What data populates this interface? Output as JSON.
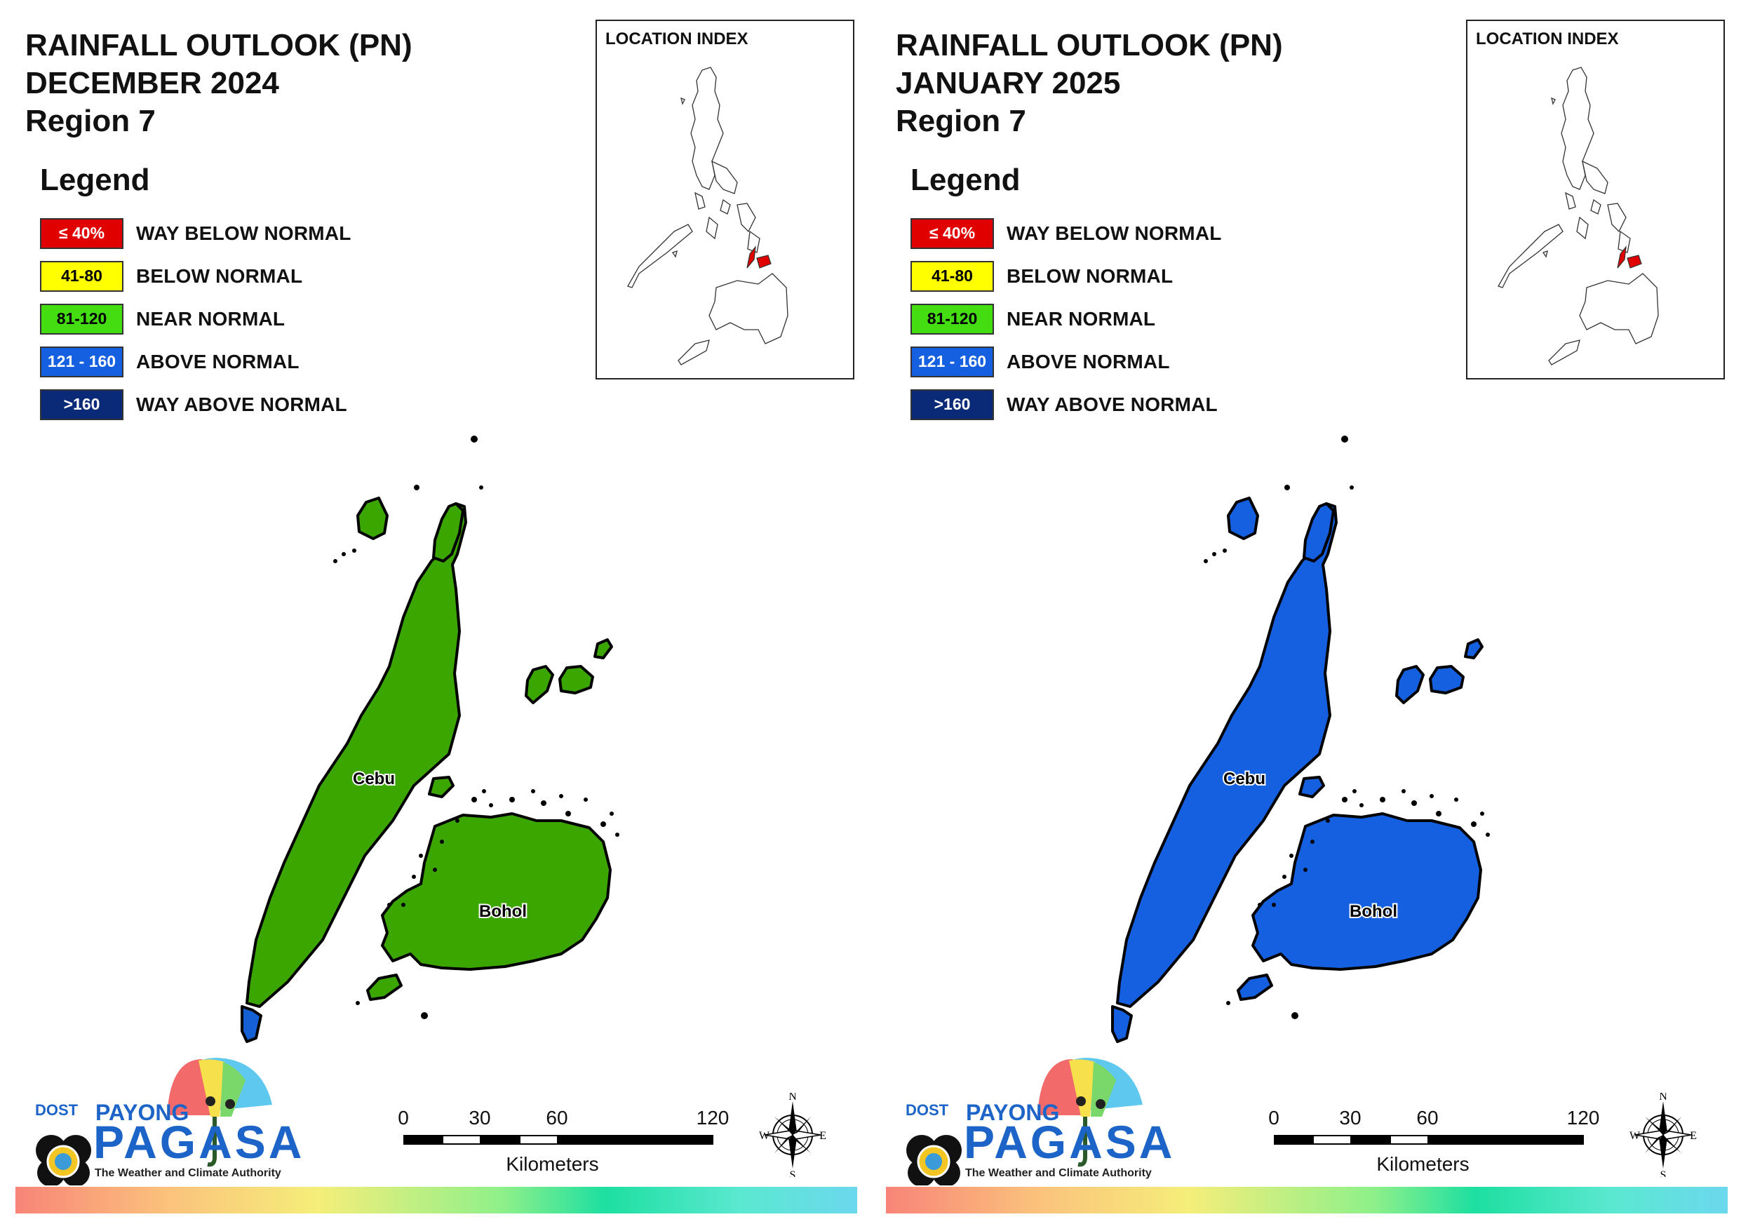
{
  "panels": [
    {
      "title_line1": "RAINFALL OUTLOOK (PN)",
      "title_line2": "DECEMBER 2024",
      "title_line3": "Region 7",
      "region_fill": "#3ca600",
      "tip_fill": "#1560d4"
    },
    {
      "title_line1": "RAINFALL OUTLOOK (PN)",
      "title_line2": "JANUARY 2025",
      "title_line3": "Region 7",
      "region_fill": "#1560e0",
      "tip_fill": "#1560e0"
    }
  ],
  "legend": {
    "title": "Legend",
    "items": [
      {
        "range": "≤ 40%",
        "label": "WAY BELOW NORMAL",
        "color": "#e00000",
        "text_color": "#ffffff"
      },
      {
        "range": "41-80",
        "label": "BELOW NORMAL",
        "color": "#ffff00",
        "text_color": "#000000"
      },
      {
        "range": "81-120",
        "label": "NEAR NORMAL",
        "color": "#44dd11",
        "text_color": "#000000"
      },
      {
        "range": "121 - 160",
        "label": "ABOVE NORMAL",
        "color": "#1560e0",
        "text_color": "#ffffff"
      },
      {
        "range": ">160",
        "label": "WAY ABOVE NORMAL",
        "color": "#0a2a78",
        "text_color": "#ffffff"
      }
    ]
  },
  "location_index": {
    "title": "LOCATION INDEX",
    "highlight_color": "#e00000"
  },
  "map_labels": {
    "cebu": "Cebu",
    "bohol": "Bohol"
  },
  "logo": {
    "dost": "DOST",
    "payong": "PAYONG",
    "pagasa": "PAGASA",
    "tagline": "The Weather and Climate Authority"
  },
  "scale": {
    "ticks": [
      "0",
      "30",
      "60",
      "120"
    ],
    "unit": "Kilometers"
  },
  "compass": {
    "n": "N",
    "s": "S",
    "e": "E",
    "w": "W"
  }
}
